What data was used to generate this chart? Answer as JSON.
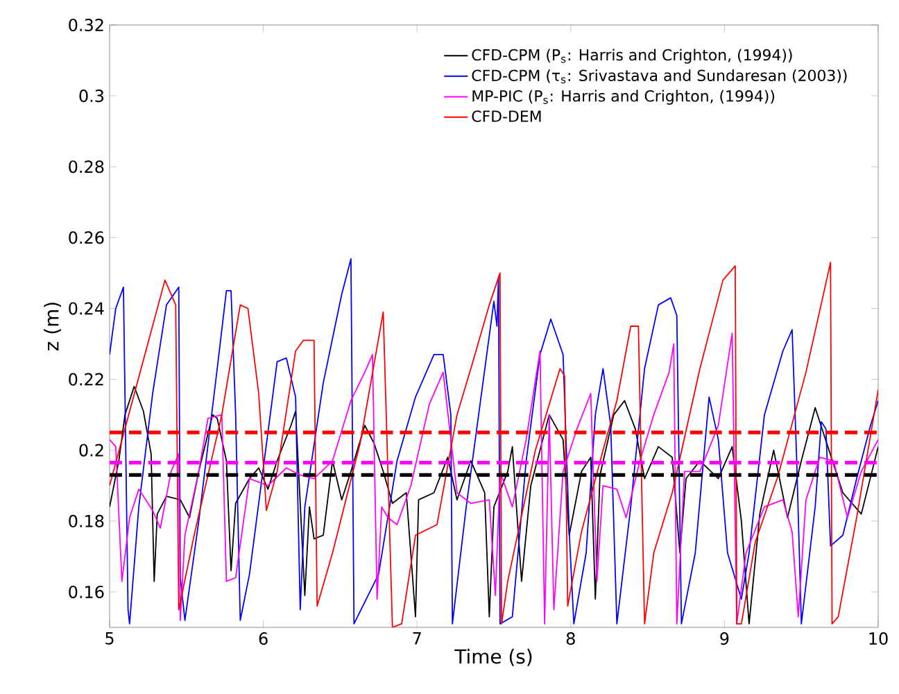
{
  "chart_data": {
    "type": "line",
    "xlabel": "Time (s)",
    "ylabel": "z (m)",
    "xlim": [
      5,
      10
    ],
    "ylim": [
      0.15,
      0.32
    ],
    "xticks": [
      5,
      6,
      7,
      8,
      9,
      10
    ],
    "yticks": [
      0.16,
      0.18,
      0.2,
      0.22,
      0.24,
      0.26,
      0.28,
      0.3,
      0.32
    ],
    "grid": false,
    "legend": "top right",
    "marker": "none",
    "line_style": "solid",
    "series": [
      {
        "name": "CFD-CPM (P$_{s}$: Harris and Crighton, (1994))",
        "color": "#000000",
        "x": [
          5.0,
          5.06,
          5.1,
          5.16,
          5.22,
          5.27,
          5.29,
          5.31,
          5.37,
          5.46,
          5.52,
          5.58,
          5.67,
          5.7,
          5.76,
          5.79,
          5.82,
          5.91,
          5.97,
          6.03,
          6.09,
          6.18,
          6.21,
          6.27,
          6.3,
          6.33,
          6.39,
          6.45,
          6.51,
          6.57,
          6.66,
          6.72,
          6.78,
          6.84,
          6.93,
          6.99,
          7.01,
          7.11,
          7.2,
          7.26,
          7.35,
          7.44,
          7.47,
          7.5,
          7.59,
          7.62,
          7.68,
          7.74,
          7.86,
          7.95,
          7.99,
          8.07,
          8.13,
          8.16,
          8.19,
          8.28,
          8.35,
          8.42,
          8.48,
          8.57,
          8.66,
          8.71,
          8.75,
          8.84,
          8.96,
          9.05,
          9.11,
          9.16,
          9.23,
          9.32,
          9.41,
          9.5,
          9.59,
          9.68,
          9.77,
          9.89,
          10.0
        ],
        "values": [
          0.184,
          0.197,
          0.21,
          0.218,
          0.211,
          0.199,
          0.163,
          0.182,
          0.187,
          0.186,
          0.181,
          0.194,
          0.21,
          0.209,
          0.197,
          0.166,
          0.185,
          0.192,
          0.195,
          0.189,
          0.197,
          0.207,
          0.211,
          0.159,
          0.184,
          0.175,
          0.176,
          0.197,
          0.186,
          0.194,
          0.207,
          0.202,
          0.194,
          0.185,
          0.188,
          0.153,
          0.186,
          0.188,
          0.198,
          0.186,
          0.197,
          0.188,
          0.153,
          0.184,
          0.194,
          0.201,
          0.163,
          0.19,
          0.21,
          0.203,
          0.176,
          0.194,
          0.198,
          0.158,
          0.193,
          0.21,
          0.214,
          0.206,
          0.192,
          0.201,
          0.198,
          0.171,
          0.192,
          0.197,
          0.192,
          0.201,
          0.18,
          0.151,
          0.182,
          0.2,
          0.181,
          0.197,
          0.212,
          0.2,
          0.188,
          0.182,
          0.201
        ]
      },
      {
        "name": "CFD-CPM (τ$_{s}$: Srivastava and Sundaresan (2003))",
        "color": "#0000ff",
        "x": [
          5.0,
          5.04,
          5.09,
          5.12,
          5.13,
          5.19,
          5.28,
          5.37,
          5.45,
          5.46,
          5.49,
          5.58,
          5.7,
          5.76,
          5.79,
          5.82,
          5.85,
          5.91,
          6.03,
          6.09,
          6.15,
          6.21,
          6.24,
          6.27,
          6.39,
          6.51,
          6.57,
          6.59,
          6.75,
          6.87,
          6.99,
          7.11,
          7.17,
          7.22,
          7.23,
          7.32,
          7.41,
          7.5,
          7.52,
          7.53,
          7.54,
          7.62,
          7.71,
          7.8,
          7.87,
          7.95,
          7.99,
          8.02,
          8.1,
          8.16,
          8.21,
          8.26,
          8.3,
          8.39,
          8.48,
          8.57,
          8.65,
          8.69,
          8.72,
          8.81,
          8.9,
          8.96,
          9.02,
          9.11,
          9.16,
          9.26,
          9.38,
          9.44,
          9.47,
          9.5,
          9.59,
          9.63,
          9.66,
          9.69,
          9.77,
          9.86,
          9.95,
          10.0
        ],
        "values": [
          0.227,
          0.24,
          0.246,
          0.155,
          0.151,
          0.184,
          0.216,
          0.241,
          0.246,
          0.164,
          0.152,
          0.18,
          0.223,
          0.245,
          0.245,
          0.21,
          0.152,
          0.165,
          0.205,
          0.225,
          0.226,
          0.215,
          0.155,
          0.184,
          0.219,
          0.244,
          0.254,
          0.151,
          0.165,
          0.197,
          0.215,
          0.227,
          0.227,
          0.21,
          0.151,
          0.184,
          0.213,
          0.242,
          0.235,
          0.249,
          0.151,
          0.153,
          0.197,
          0.227,
          0.237,
          0.227,
          0.177,
          0.151,
          0.171,
          0.21,
          0.223,
          0.207,
          0.151,
          0.184,
          0.223,
          0.241,
          0.243,
          0.238,
          0.151,
          0.171,
          0.215,
          0.203,
          0.171,
          0.158,
          0.171,
          0.21,
          0.228,
          0.234,
          0.197,
          0.151,
          0.184,
          0.208,
          0.206,
          0.173,
          0.176,
          0.192,
          0.207,
          0.214
        ]
      },
      {
        "name": "MP-PIC   (P$_{s}$: Harris and Crighton, (1994))",
        "color": "#ff00ff",
        "x": [
          5.0,
          5.04,
          5.08,
          5.13,
          5.19,
          5.28,
          5.33,
          5.4,
          5.45,
          5.46,
          5.49,
          5.58,
          5.64,
          5.73,
          5.76,
          5.82,
          5.91,
          6.03,
          6.15,
          6.24,
          6.33,
          6.45,
          6.57,
          6.66,
          6.71,
          6.74,
          6.77,
          6.81,
          6.87,
          6.96,
          7.08,
          7.17,
          7.26,
          7.35,
          7.47,
          7.51,
          7.54,
          7.62,
          7.71,
          7.8,
          7.83,
          7.86,
          7.89,
          7.95,
          8.04,
          8.13,
          8.17,
          8.21,
          8.3,
          8.36,
          8.45,
          8.54,
          8.64,
          8.67,
          8.69,
          8.74,
          8.84,
          8.96,
          9.05,
          9.08,
          9.14,
          9.26,
          9.38,
          9.44,
          9.48,
          9.53,
          9.62,
          9.71,
          9.8,
          9.89,
          10.0
        ],
        "values": [
          0.203,
          0.201,
          0.163,
          0.181,
          0.189,
          0.183,
          0.178,
          0.194,
          0.199,
          0.152,
          0.176,
          0.194,
          0.209,
          0.21,
          0.163,
          0.164,
          0.192,
          0.19,
          0.195,
          0.193,
          0.192,
          0.197,
          0.214,
          0.222,
          0.227,
          0.158,
          0.184,
          0.181,
          0.179,
          0.19,
          0.213,
          0.222,
          0.188,
          0.185,
          0.186,
          0.159,
          0.194,
          0.184,
          0.203,
          0.228,
          0.151,
          0.21,
          0.155,
          0.194,
          0.206,
          0.216,
          0.163,
          0.19,
          0.189,
          0.181,
          0.197,
          0.21,
          0.222,
          0.23,
          0.151,
          0.194,
          0.194,
          0.207,
          0.233,
          0.151,
          0.171,
          0.184,
          0.186,
          0.177,
          0.153,
          0.186,
          0.198,
          0.197,
          0.181,
          0.194,
          0.203
        ]
      },
      {
        "name": "CFD-DEM",
        "color": "#ff0000",
        "x": [
          5.0,
          5.36,
          5.43,
          5.45,
          5.55,
          5.73,
          5.85,
          5.9,
          5.97,
          6.02,
          6.09,
          6.21,
          6.26,
          6.33,
          6.35,
          6.45,
          6.63,
          6.78,
          6.84,
          6.9,
          6.99,
          7.13,
          7.26,
          7.35,
          7.47,
          7.54,
          7.55,
          7.59,
          7.77,
          7.93,
          7.96,
          7.98,
          8.07,
          8.21,
          8.3,
          8.39,
          8.44,
          8.48,
          8.54,
          8.66,
          8.84,
          8.99,
          9.07,
          9.08,
          9.11,
          9.2,
          9.35,
          9.53,
          9.69,
          9.7,
          9.74,
          9.86,
          10.0
        ],
        "values": [
          0.19,
          0.248,
          0.241,
          0.155,
          0.176,
          0.21,
          0.241,
          0.24,
          0.216,
          0.183,
          0.194,
          0.228,
          0.231,
          0.231,
          0.156,
          0.171,
          0.202,
          0.239,
          0.15,
          0.151,
          0.176,
          0.179,
          0.21,
          0.223,
          0.241,
          0.25,
          0.151,
          0.163,
          0.2,
          0.223,
          0.221,
          0.156,
          0.177,
          0.2,
          0.214,
          0.235,
          0.235,
          0.151,
          0.171,
          0.188,
          0.223,
          0.248,
          0.252,
          0.151,
          0.151,
          0.174,
          0.193,
          0.222,
          0.253,
          0.151,
          0.153,
          0.181,
          0.217
        ]
      }
    ],
    "ref_lines": [
      {
        "axis": "y",
        "value": 0.205,
        "color": "#ff0000",
        "line_style": "dashed"
      },
      {
        "axis": "y",
        "value": 0.1965,
        "color": "#ff00ff",
        "line_style": "dashed"
      },
      {
        "axis": "y",
        "value": 0.193,
        "color": "#000000",
        "line_style": "dashed"
      }
    ]
  }
}
